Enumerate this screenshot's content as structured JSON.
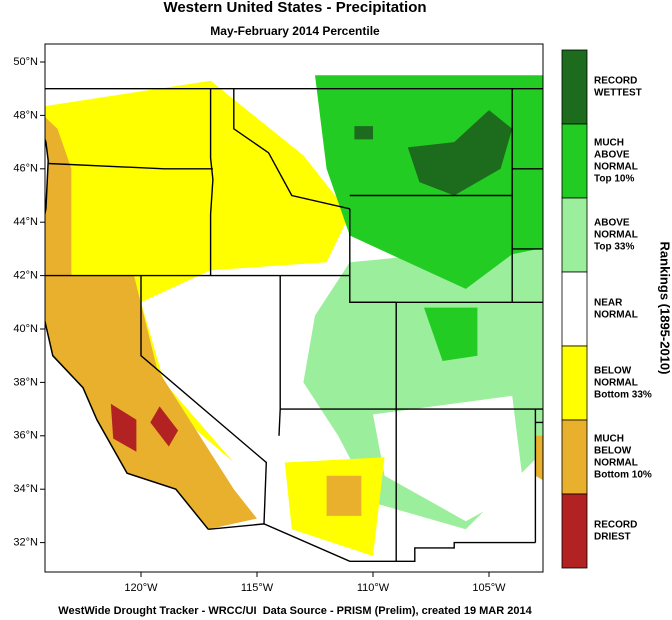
{
  "title": "Western United States - Precipitation",
  "subtitle": "May-February 2014 Percentile",
  "lat_ticks": [
    {
      "value": 50,
      "label": "50°N"
    },
    {
      "value": 48,
      "label": "48°N"
    },
    {
      "value": 46,
      "label": "46°N"
    },
    {
      "value": 44,
      "label": "44°N"
    },
    {
      "value": 42,
      "label": "42°N"
    },
    {
      "value": 40,
      "label": "40°N"
    },
    {
      "value": 38,
      "label": "38°N"
    },
    {
      "value": 36,
      "label": "36°N"
    },
    {
      "value": 34,
      "label": "34°N"
    },
    {
      "value": 32,
      "label": "32°N"
    }
  ],
  "lon_ticks": [
    {
      "value": -120,
      "label": "120°W"
    },
    {
      "value": -115,
      "label": "115°W"
    },
    {
      "value": -110,
      "label": "110°W"
    },
    {
      "value": -105,
      "label": "105°W"
    }
  ],
  "legend": {
    "title": "Rankings (1895-2010)",
    "entries": [
      {
        "lines": [
          "RECORD",
          "WETTEST"
        ],
        "color": "#1d6b1d"
      },
      {
        "lines": [
          "MUCH",
          "ABOVE",
          "NORMAL",
          "Top 10%"
        ],
        "color": "#22cc22"
      },
      {
        "lines": [
          "ABOVE",
          "NORMAL",
          "Top 33%"
        ],
        "color": "#9bee9b"
      },
      {
        "lines": [
          "NEAR",
          "NORMAL"
        ],
        "color": "#ffffff"
      },
      {
        "lines": [
          "BELOW",
          "NORMAL",
          "Bottom 33%"
        ],
        "color": "#ffff00"
      },
      {
        "lines": [
          "MUCH",
          "BELOW",
          "NORMAL",
          "Bottom 10%"
        ],
        "color": "#e9b02e"
      },
      {
        "lines": [
          "RECORD",
          "DRIEST"
        ],
        "color": "#b32222"
      }
    ]
  },
  "footer": "WestWide Drought Tracker - WRCC/UI  Data Source - PRISM (Prelim), created 19 MAR 2014"
}
